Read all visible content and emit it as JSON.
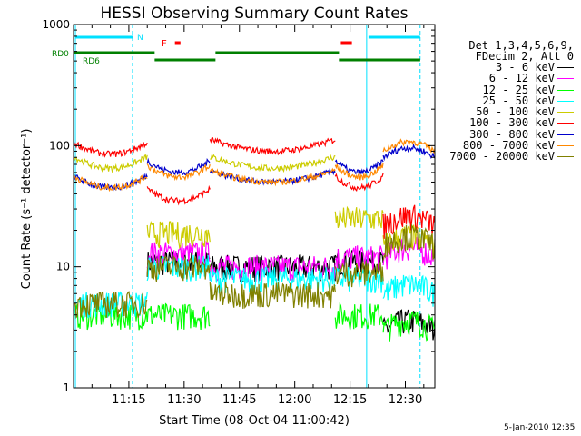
{
  "chart_data": {
    "type": "line",
    "title": "HESSI Observing Summary Count Rates",
    "xlabel": "Start Time (08-Oct-04 11:00:42)",
    "ylabel": "Count Rate (s⁻¹ detector⁻¹)",
    "yscale": "log",
    "ylim": [
      1,
      1000
    ],
    "xlim_minutes": [
      0,
      98
    ],
    "x_ticks": [
      "11:15",
      "11:30",
      "11:45",
      "12:00",
      "12:15",
      "12:30"
    ],
    "y_ticks": [
      "1",
      "10",
      "100",
      "1000"
    ],
    "legend_header": [
      "Det 1,3,4,5,6,9,",
      "FDecim 2, Att 0"
    ],
    "legend_placement": "outside-right",
    "series": [
      {
        "name": "3 - 6 keV",
        "color": "#000000"
      },
      {
        "name": "6 - 12 keV",
        "color": "#ff00ff"
      },
      {
        "name": "12 - 25 keV",
        "color": "#00ff00"
      },
      {
        "name": "25 - 50 keV",
        "color": "#00ffff"
      },
      {
        "name": "50 - 100 keV",
        "color": "#cccc00"
      },
      {
        "name": "100 - 300 keV",
        "color": "#ff0000"
      },
      {
        "name": "300 - 800 keV",
        "color": "#0000cc"
      },
      {
        "name": "800 - 7000 keV",
        "color": "#ff8800"
      },
      {
        "name": "7000 - 20000 keV",
        "color": "#808000"
      }
    ],
    "series_levels_by_segment": {
      "segments_minutes": [
        [
          0,
          20
        ],
        [
          20,
          37
        ],
        [
          37,
          71
        ],
        [
          71,
          84
        ],
        [
          84,
          98
        ]
      ],
      "3 - 6 keV": [
        null,
        11,
        10,
        11,
        3
      ],
      "6 - 12 keV": [
        null,
        13,
        10,
        12,
        12
      ],
      "12 - 25 keV": [
        4,
        4,
        null,
        4,
        3
      ],
      "25 - 50 keV": [
        5,
        10,
        8,
        8,
        6
      ],
      "50 - 100 keV": [
        65,
        19,
        65,
        25,
        15
      ],
      "100 - 300 keV": [
        85,
        35,
        90,
        45,
        22
      ],
      "300 - 800 keV": [
        45,
        60,
        50,
        60,
        80
      ],
      "800 - 7000 keV": [
        45,
        55,
        50,
        55,
        90
      ],
      "7000 - 20000 keV": [
        5,
        10,
        6,
        9,
        15
      ]
    },
    "flags": {
      "N": "N",
      "F": "F",
      "RD0": "RD0",
      "RD6": "RD6"
    }
  },
  "timestamp": "5-Jan-2010 12:35"
}
